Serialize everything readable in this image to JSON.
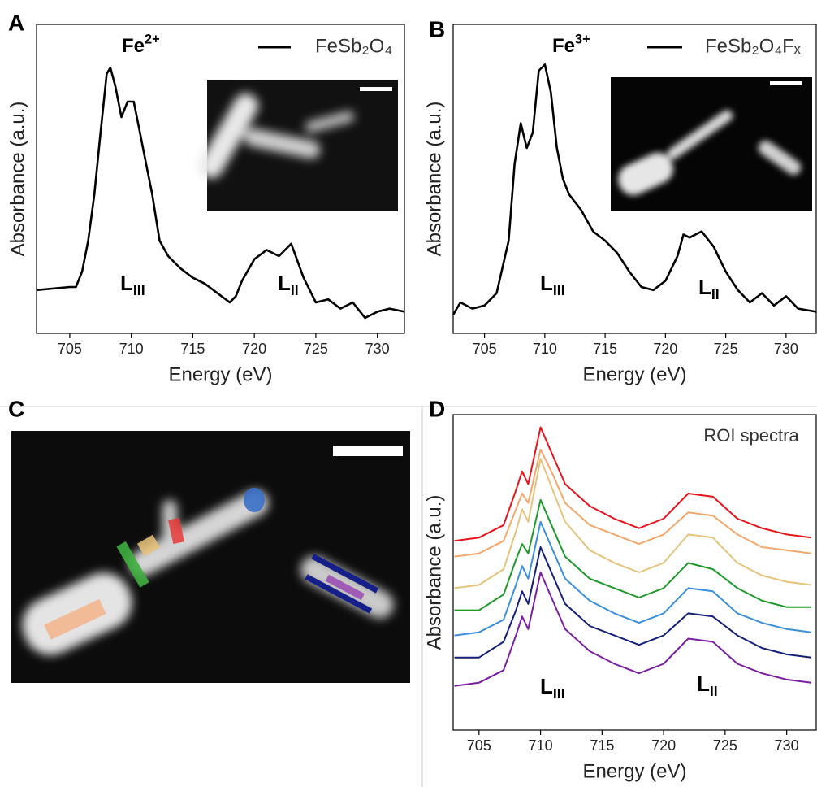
{
  "chart_data": [
    {
      "type": "line",
      "panel_label": "A",
      "xlabel": "Energy (eV)",
      "ylabel": "Absorbance (a.u.)",
      "xlim": [
        702.3,
        732.2
      ],
      "xticks": [
        705,
        710,
        715,
        720,
        725,
        730
      ],
      "ylim": [
        0,
        1
      ],
      "x": [
        702.3,
        705,
        705.5,
        706,
        706.5,
        707,
        707.5,
        708,
        708.3,
        708.7,
        709.2,
        709.7,
        710.2,
        710.7,
        711.2,
        711.7,
        712.3,
        713,
        714,
        715,
        716,
        717,
        718,
        718.5,
        719,
        720,
        721,
        722,
        723,
        724,
        725,
        726,
        727,
        728,
        729,
        730,
        731,
        732.2
      ],
      "series": [
        {
          "name": "FeSb₂O₄",
          "color": "#000000",
          "values": [
            0.14,
            0.15,
            0.15,
            0.2,
            0.3,
            0.45,
            0.65,
            0.84,
            0.86,
            0.8,
            0.7,
            0.75,
            0.75,
            0.65,
            0.55,
            0.45,
            0.3,
            0.25,
            0.21,
            0.18,
            0.16,
            0.13,
            0.1,
            0.12,
            0.17,
            0.24,
            0.27,
            0.25,
            0.29,
            0.18,
            0.1,
            0.11,
            0.08,
            0.1,
            0.05,
            0.07,
            0.08,
            0.07
          ]
        }
      ],
      "annotations": [
        {
          "text": "Fe",
          "sup": "2+"
        },
        {
          "text": "L",
          "sub": "III"
        },
        {
          "text": "L",
          "sub": "II"
        }
      ]
    },
    {
      "type": "line",
      "panel_label": "B",
      "xlabel": "Energy (eV)",
      "ylabel": "Absorbance (a.u.)",
      "xlim": [
        702.4,
        732.5
      ],
      "xticks": [
        705,
        710,
        715,
        720,
        725,
        730
      ],
      "ylim": [
        0,
        1
      ],
      "x": [
        702.4,
        703,
        704,
        705,
        706,
        707,
        707.5,
        708,
        708.5,
        709,
        709.5,
        710,
        710.5,
        711,
        711.5,
        712,
        713,
        714,
        715,
        716,
        717,
        718,
        719,
        720,
        721,
        721.5,
        722,
        723,
        724,
        725,
        726,
        727,
        728,
        729,
        730,
        731,
        732.5
      ],
      "series": [
        {
          "name": "FeSb₂O₄Fₓ",
          "color": "#000000",
          "values": [
            0.06,
            0.1,
            0.08,
            0.09,
            0.13,
            0.3,
            0.55,
            0.68,
            0.6,
            0.65,
            0.85,
            0.87,
            0.78,
            0.6,
            0.5,
            0.45,
            0.4,
            0.33,
            0.3,
            0.26,
            0.2,
            0.15,
            0.14,
            0.17,
            0.25,
            0.32,
            0.31,
            0.33,
            0.28,
            0.2,
            0.14,
            0.1,
            0.13,
            0.09,
            0.12,
            0.08,
            0.07
          ]
        }
      ],
      "annotations": [
        {
          "text": "Fe",
          "sup": "3+"
        },
        {
          "text": "L",
          "sub": "III"
        },
        {
          "text": "L",
          "sub": "II"
        }
      ]
    },
    {
      "type": "line",
      "panel_label": "D",
      "xlabel": "Energy (eV)",
      "ylabel": "Absorbance (a.u.)",
      "xlim": [
        702.9,
        732.4
      ],
      "xticks": [
        705,
        710,
        715,
        720,
        725,
        730
      ],
      "ylim": [
        0,
        1
      ],
      "x": [
        703,
        705,
        707,
        708,
        708.5,
        709,
        710,
        711,
        712,
        714,
        716,
        718,
        720,
        722,
        724,
        726,
        728,
        730,
        732
      ],
      "series": [
        {
          "color": "#e8141c",
          "values": [
            0.6,
            0.61,
            0.65,
            0.76,
            0.82,
            0.78,
            0.96,
            0.87,
            0.78,
            0.71,
            0.67,
            0.64,
            0.67,
            0.75,
            0.74,
            0.67,
            0.64,
            0.62,
            0.61
          ]
        },
        {
          "color": "#f4a76a",
          "values": [
            0.55,
            0.56,
            0.6,
            0.7,
            0.75,
            0.72,
            0.89,
            0.81,
            0.72,
            0.65,
            0.62,
            0.59,
            0.62,
            0.69,
            0.68,
            0.62,
            0.58,
            0.57,
            0.56
          ]
        },
        {
          "color": "#e6c37c",
          "values": [
            0.45,
            0.46,
            0.51,
            0.63,
            0.7,
            0.66,
            0.86,
            0.76,
            0.66,
            0.57,
            0.53,
            0.5,
            0.53,
            0.62,
            0.61,
            0.53,
            0.49,
            0.47,
            0.46
          ]
        },
        {
          "color": "#1e9a2a",
          "values": [
            0.38,
            0.38,
            0.43,
            0.54,
            0.59,
            0.56,
            0.73,
            0.64,
            0.55,
            0.48,
            0.45,
            0.42,
            0.45,
            0.53,
            0.51,
            0.45,
            0.41,
            0.39,
            0.39
          ]
        },
        {
          "color": "#3b8fdc",
          "values": [
            0.3,
            0.31,
            0.35,
            0.46,
            0.52,
            0.48,
            0.66,
            0.57,
            0.48,
            0.41,
            0.37,
            0.34,
            0.37,
            0.45,
            0.44,
            0.37,
            0.34,
            0.32,
            0.31
          ]
        },
        {
          "color": "#141f7a",
          "values": [
            0.23,
            0.23,
            0.28,
            0.38,
            0.44,
            0.4,
            0.58,
            0.49,
            0.4,
            0.33,
            0.3,
            0.27,
            0.3,
            0.37,
            0.36,
            0.3,
            0.26,
            0.24,
            0.23
          ]
        },
        {
          "color": "#7a1fa0",
          "values": [
            0.14,
            0.15,
            0.19,
            0.3,
            0.36,
            0.32,
            0.5,
            0.41,
            0.32,
            0.25,
            0.21,
            0.18,
            0.21,
            0.29,
            0.28,
            0.21,
            0.18,
            0.16,
            0.15
          ]
        }
      ],
      "annotations": [
        {
          "text": "ROI spectra"
        },
        {
          "text": "L",
          "sub": "III"
        },
        {
          "text": "L",
          "sub": "II"
        }
      ]
    }
  ],
  "panel_c": {
    "panel_label": "C"
  }
}
